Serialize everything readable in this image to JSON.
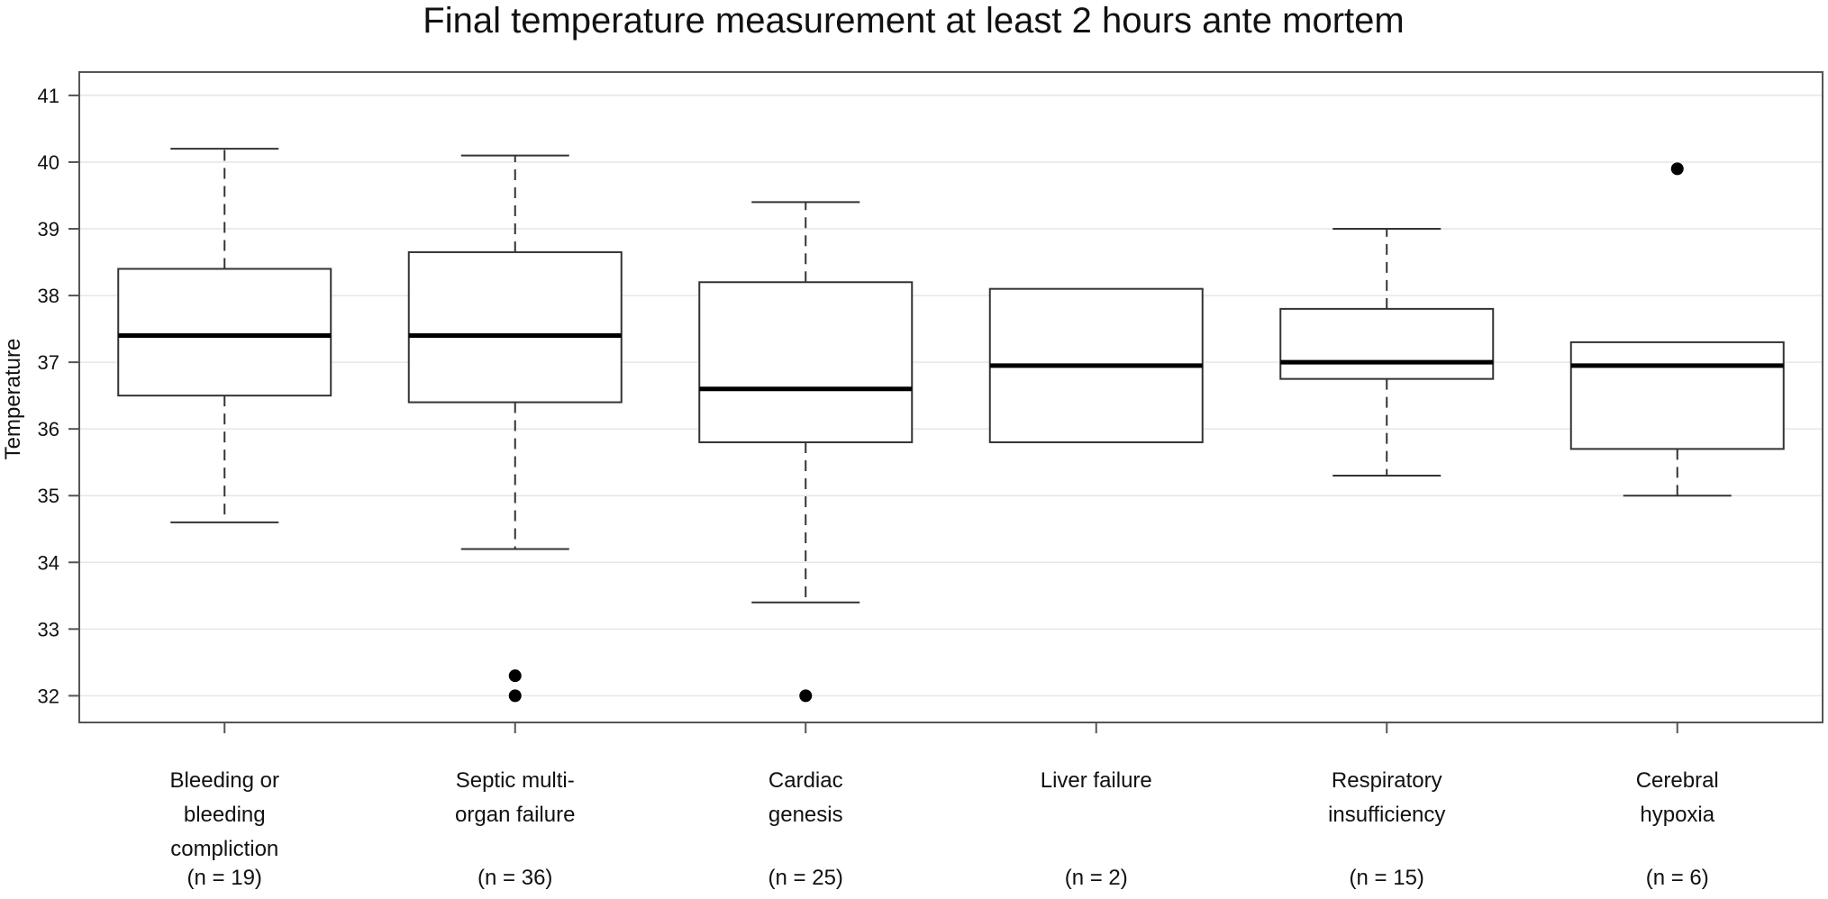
{
  "chart_data": {
    "type": "boxplot",
    "title": "Final temperature measurement at least 2 hours ante mortem",
    "ylabel": "Temperature",
    "xlabel": "",
    "ylim": [
      31.6,
      41.35
    ],
    "yticks": [
      32,
      33,
      34,
      35,
      36,
      37,
      38,
      39,
      40,
      41
    ],
    "grid": true,
    "categories": [
      {
        "lines": [
          "Bleeding or",
          "bleeding",
          "compliction"
        ],
        "n_label": "(n = 19)"
      },
      {
        "lines": [
          "Septic multi-",
          "organ failure"
        ],
        "n_label": "(n = 36)"
      },
      {
        "lines": [
          "Cardiac",
          "genesis"
        ],
        "n_label": "(n = 25)"
      },
      {
        "lines": [
          "Liver failure"
        ],
        "n_label": "(n = 2)"
      },
      {
        "lines": [
          "Respiratory",
          "insufficiency"
        ],
        "n_label": "(n = 15)"
      },
      {
        "lines": [
          "Cerebral",
          "hypoxia"
        ],
        "n_label": "(n = 6)"
      }
    ],
    "boxes": [
      {
        "whisker_low": 34.6,
        "q1": 36.5,
        "median": 37.4,
        "q3": 38.4,
        "whisker_high": 40.2,
        "outliers": []
      },
      {
        "whisker_low": 34.2,
        "q1": 36.4,
        "median": 37.4,
        "q3": 38.65,
        "whisker_high": 40.1,
        "outliers": [
          32.3,
          32.0
        ]
      },
      {
        "whisker_low": 33.4,
        "q1": 35.8,
        "median": 36.6,
        "q3": 38.2,
        "whisker_high": 39.4,
        "outliers": [
          32.0
        ]
      },
      {
        "whisker_low": 35.8,
        "q1": 35.8,
        "median": 36.95,
        "q3": 38.1,
        "whisker_high": 38.1,
        "outliers": []
      },
      {
        "whisker_low": 35.3,
        "q1": 36.75,
        "median": 37.0,
        "q3": 37.8,
        "whisker_high": 39.0,
        "outliers": []
      },
      {
        "whisker_low": 35.0,
        "q1": 35.7,
        "median": 36.95,
        "q3": 37.3,
        "whisker_high": 37.3,
        "outliers": [
          39.9
        ]
      }
    ]
  }
}
